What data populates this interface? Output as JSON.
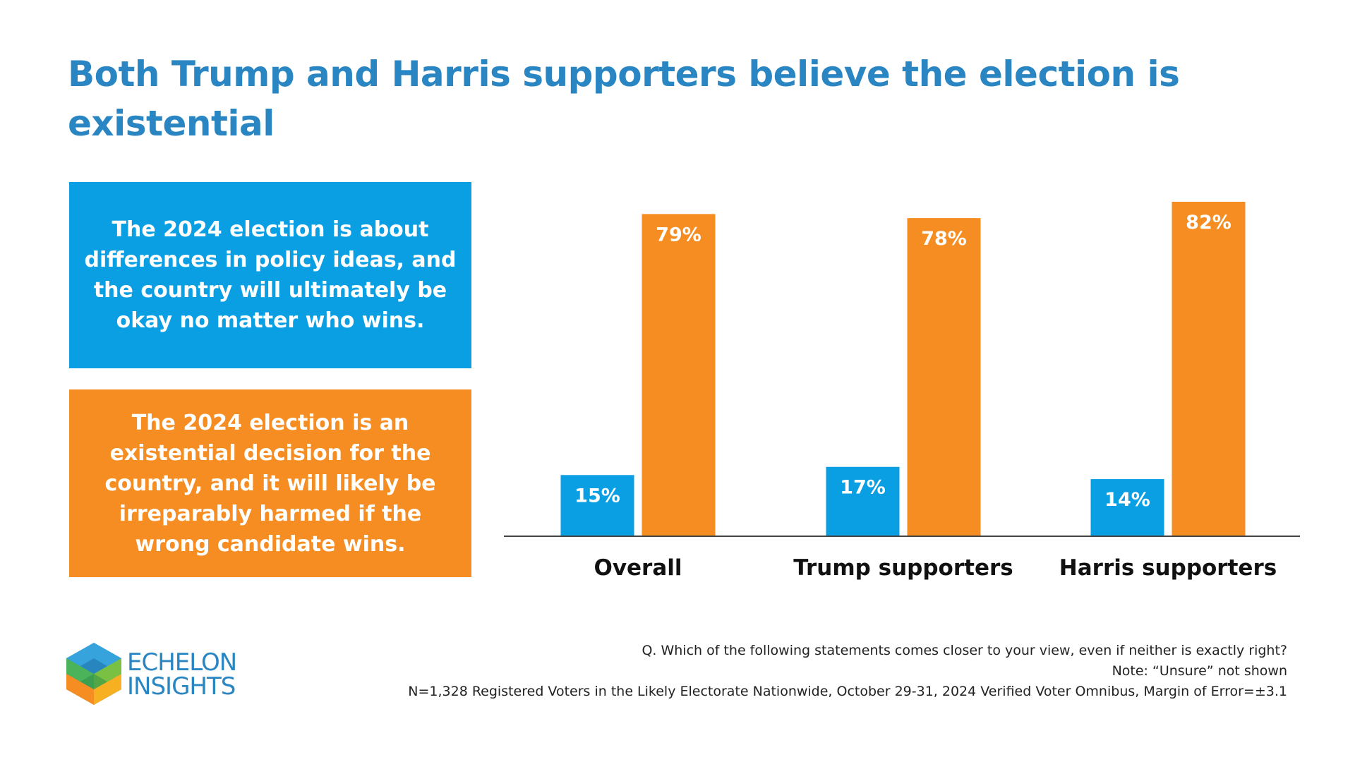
{
  "title": "Both Trump and Harris supporters believe the election is existential",
  "legend": {
    "blue_label": "The 2024 election is about differences in policy ideas, and the country will ultimately be okay no matter who wins.",
    "orange_label": "The 2024 election is an existential decision for the country, and it will likely be irreparably harmed if the wrong candidate wins."
  },
  "colors": {
    "title": "#2a86c2",
    "blue": "#0a9ee3",
    "orange": "#f68d22",
    "axis": "#444444"
  },
  "chart_data": {
    "type": "bar",
    "categories": [
      "Overall",
      "Trump supporters",
      "Harris supporters"
    ],
    "series": [
      {
        "values": [
          15,
          17,
          14
        ],
        "labels": [
          "15%",
          "17%",
          "14%"
        ],
        "color": "#0a9ee3"
      },
      {
        "values": [
          79,
          78,
          82
        ],
        "labels": [
          "79%",
          "78%",
          "82%"
        ],
        "color": "#f68d22"
      }
    ],
    "ylim": [
      0,
      82
    ],
    "grid": false,
    "xlabel": "",
    "ylabel": ""
  },
  "footnotes": [
    "Q. Which of the following statements comes closer to your view, even if neither is exactly right?",
    "Note: “Unsure” not shown",
    "N=1,328 Registered Voters in the Likely Electorate Nationwide, October 29-31, 2024 Verified Voter Omnibus, Margin of Error=±3.1"
  ],
  "logo": {
    "line1": "ECHELON",
    "line2": "INSIGHTS"
  }
}
